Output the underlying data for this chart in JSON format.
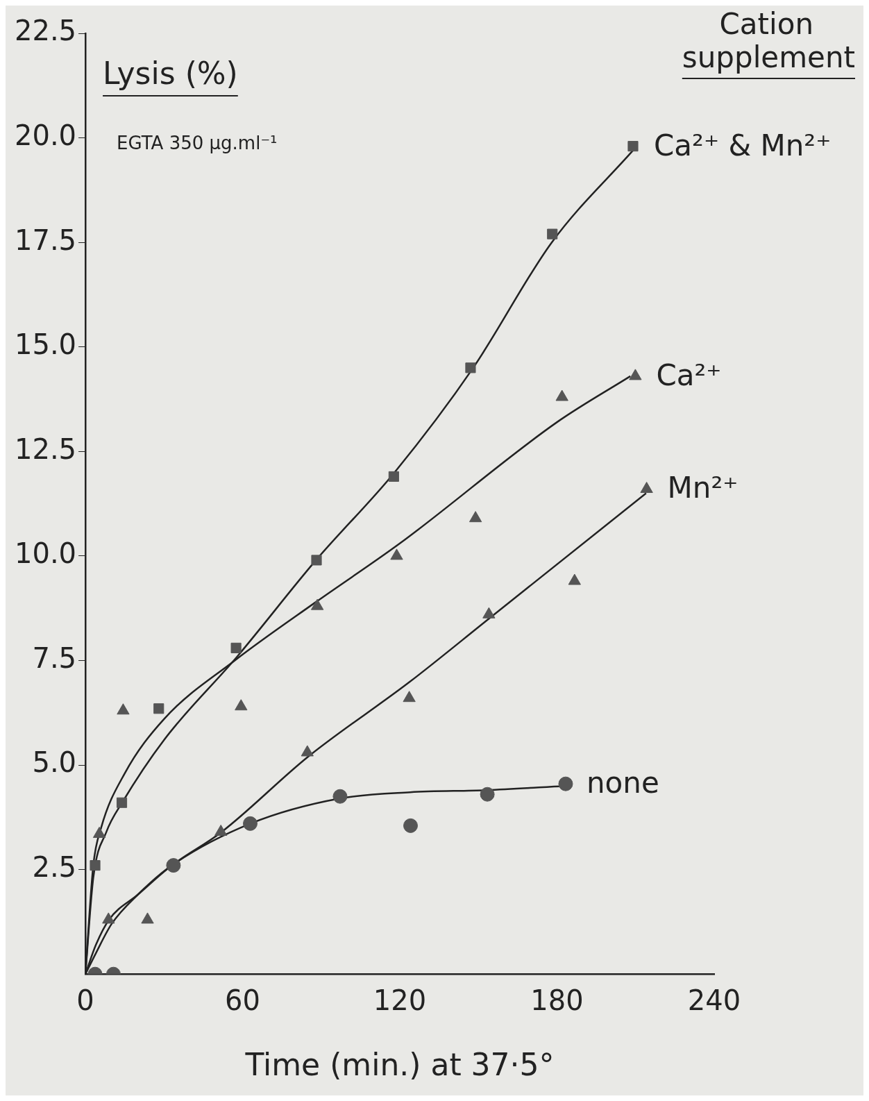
{
  "chart_data": {
    "type": "scatter",
    "xlabel": "Time (min.) at 37·5°",
    "ylabel": "Lysis (%)",
    "legend_title": "Cation supplement",
    "annotations": [
      "EGTA 350 µg.ml⁻¹"
    ],
    "xlim": [
      0,
      240
    ],
    "ylim": [
      0,
      22.5
    ],
    "xticks": [
      0,
      60,
      120,
      180,
      240
    ],
    "yticks": [
      2.5,
      {
        "value": 5,
        "label": "5.0"
      },
      7.5,
      {
        "value": 10,
        "label": "10.0"
      },
      12.5,
      {
        "value": 15,
        "label": "15.0"
      },
      17.5,
      {
        "value": 20,
        "label": "20.0"
      },
      22.5
    ],
    "grid": false,
    "legend": false,
    "series": [
      {
        "name": "Ca²⁺ & Mn²⁺",
        "type": "scatter",
        "marker": "square",
        "color": "#555555",
        "x": [
          3.7,
          13.9,
          28,
          57.5,
          88.2,
          117.7,
          147,
          178.2,
          209
        ],
        "values": [
          2.6,
          4.1,
          6.35,
          7.8,
          9.9,
          11.9,
          14.5,
          17.7,
          19.8
        ]
      },
      {
        "name": "Ca²⁺",
        "type": "scatter",
        "marker": "triangle",
        "color": "#555555",
        "x": [
          5.3,
          14.4,
          59.4,
          88.5,
          118.8,
          148.9,
          181.9,
          209.9
        ],
        "values": [
          3.35,
          6.3,
          6.4,
          8.8,
          10.0,
          10.9,
          13.8,
          14.3
        ]
      },
      {
        "name": "Mn²⁺",
        "type": "scatter",
        "marker": "triangle",
        "color": "#555555",
        "x": [
          8.8,
          23.7,
          51.7,
          84.7,
          123.6,
          154,
          186.7,
          214.2
        ],
        "values": [
          1.3,
          1.3,
          3.4,
          5.3,
          6.6,
          8.6,
          9.4,
          11.6
        ]
      },
      {
        "name": "none",
        "type": "scatter",
        "marker": "circle",
        "color": "#555555",
        "x": [
          3.7,
          10.7,
          33.6,
          62.9,
          97.2,
          124.1,
          153.4,
          183.3
        ],
        "values": [
          0,
          0,
          2.6,
          3.6,
          4.25,
          3.55,
          4.3,
          4.55
        ]
      },
      {
        "type": "line",
        "marker": "none",
        "color": "#222222",
        "x": [
          0,
          3,
          8,
          14,
          30,
          58,
          88,
          118,
          148,
          178,
          209
        ],
        "values": [
          0,
          2.3,
          3.4,
          4.1,
          5.6,
          7.6,
          9.9,
          12.0,
          14.5,
          17.5,
          19.7
        ]
      },
      {
        "type": "line",
        "marker": "none",
        "color": "#222222",
        "x": [
          0,
          3,
          6,
          15,
          30,
          57,
          88,
          120,
          180,
          208
        ],
        "values": [
          0,
          2.6,
          3.5,
          4.8,
          6.1,
          7.5,
          8.9,
          10.3,
          13.2,
          14.3
        ]
      },
      {
        "type": "line",
        "marker": "none",
        "color": "#222222",
        "x": [
          0,
          4,
          9,
          20,
          33,
          52,
          85,
          124,
          154,
          214
        ],
        "values": [
          0,
          0.7,
          1.3,
          1.9,
          2.6,
          3.4,
          5.2,
          7.0,
          8.5,
          11.5
        ]
      },
      {
        "type": "line",
        "marker": "none",
        "color": "#222222",
        "x": [
          0,
          4,
          10,
          20,
          33,
          63,
          97,
          124,
          153,
          183
        ],
        "values": [
          0,
          0.5,
          1.2,
          1.9,
          2.6,
          3.6,
          4.2,
          4.35,
          4.4,
          4.5
        ]
      }
    ]
  }
}
